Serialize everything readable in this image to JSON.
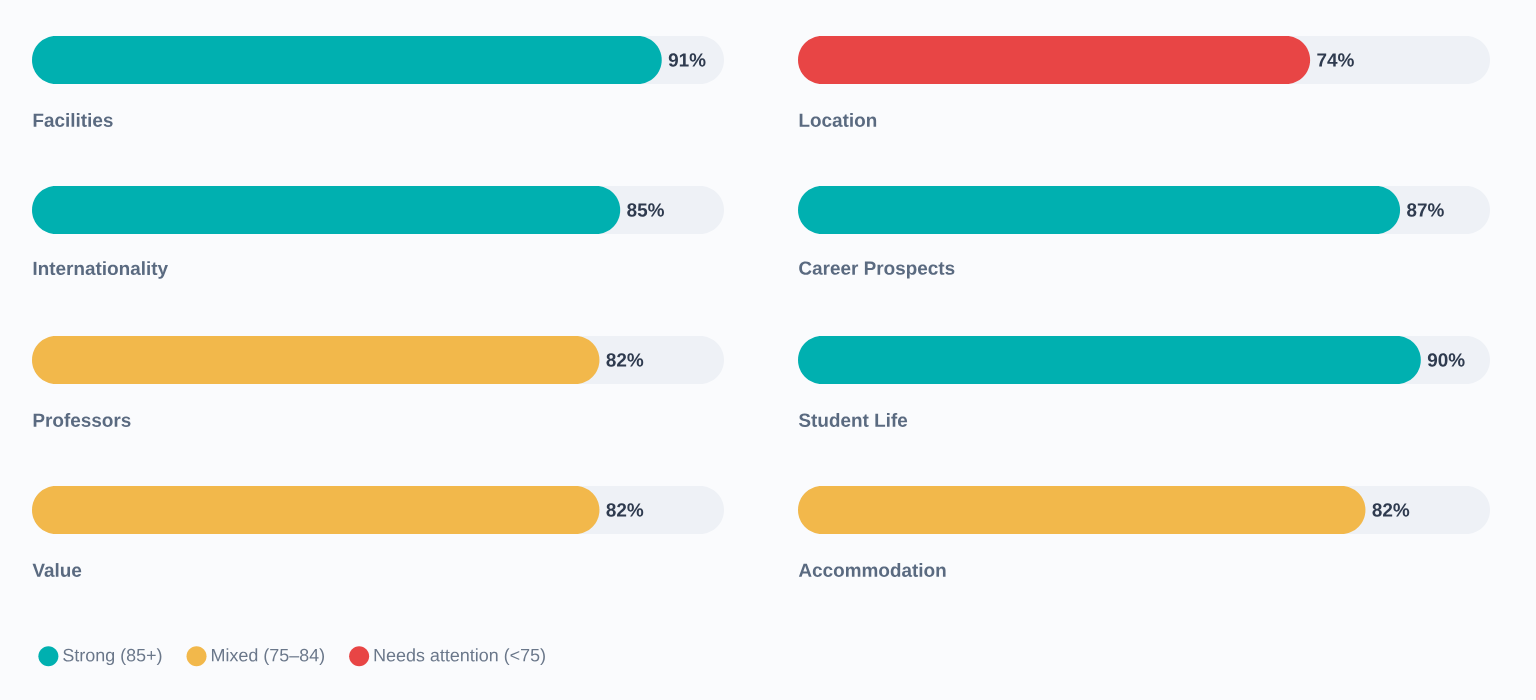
{
  "chart_data": [
    {
      "type": "bar",
      "orientation": "horizontal",
      "stacked": true,
      "categories": [
        "Facilities",
        "Internationality",
        "Professors",
        "Value"
      ],
      "xlim": [
        0,
        100
      ],
      "tick_labels": false,
      "legend": "bottom left",
      "series": [
        {
          "name": "Strong (85+)",
          "color": "#00b0b0",
          "values": [
            91,
            85,
            null,
            null
          ],
          "value_labels": [
            "91%",
            "85%",
            null,
            null
          ]
        },
        {
          "name": "Mixed (75–84)",
          "color": "#f2b84b",
          "values": [
            null,
            null,
            82,
            82
          ],
          "value_labels": [
            null,
            null,
            "82%",
            "82%"
          ]
        },
        {
          "name": "Needs attention (<75)",
          "color": "#e84545",
          "values": [
            null,
            null,
            null,
            null
          ],
          "value_labels": [
            null,
            null,
            null,
            null
          ]
        }
      ]
    },
    {
      "type": "bar",
      "orientation": "horizontal",
      "stacked": true,
      "categories": [
        "Location",
        "Career Prospects",
        "Student Life",
        "Accommodation"
      ],
      "xlim": [
        0,
        100
      ],
      "tick_labels": false,
      "series": [
        {
          "color": "#00b0b0",
          "values": [
            null,
            87,
            90,
            null
          ],
          "value_labels": [
            null,
            "87%",
            "90%",
            null
          ]
        },
        {
          "color": "#f2b84b",
          "values": [
            null,
            null,
            null,
            82
          ],
          "value_labels": [
            null,
            null,
            null,
            "82%"
          ]
        },
        {
          "color": "#e84545",
          "values": [
            74,
            null,
            null,
            null
          ],
          "value_labels": [
            "74%",
            null,
            null,
            null
          ]
        }
      ]
    }
  ]
}
